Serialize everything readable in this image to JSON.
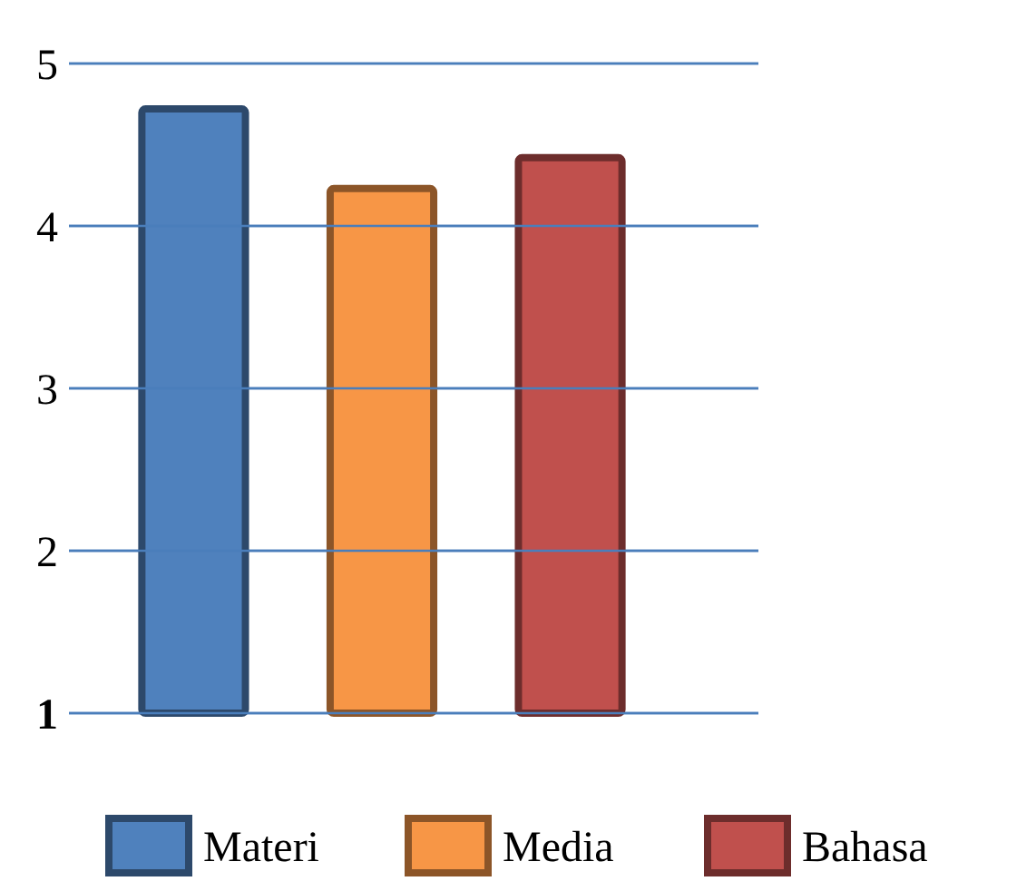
{
  "chart_data": {
    "type": "bar",
    "categories": [
      null
    ],
    "series": [
      {
        "name": "Materi",
        "color": "#4f81bd",
        "values": [
          4.72
        ]
      },
      {
        "name": "Media",
        "color": "#f79646",
        "values": [
          4.23
        ]
      },
      {
        "name": "Bahasa",
        "color": "#c0504d",
        "values": [
          4.42
        ]
      }
    ],
    "ylim": [
      1,
      5
    ],
    "yticks": [
      1,
      2,
      3,
      4,
      5
    ],
    "grid": true,
    "legend": "bottom"
  }
}
